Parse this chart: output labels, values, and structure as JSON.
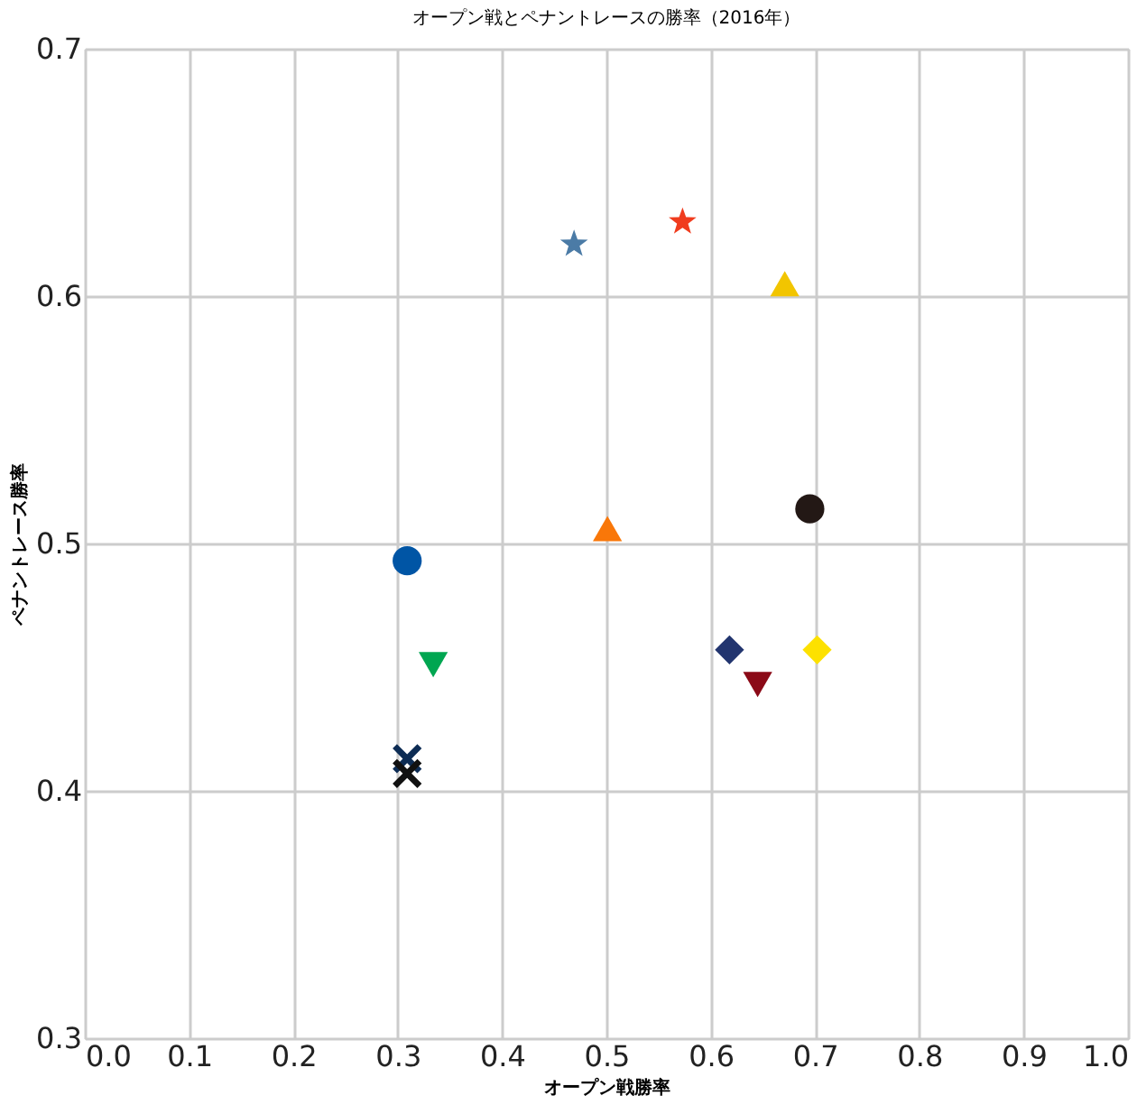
{
  "chart_data": {
    "type": "scatter",
    "title": "オープン戦とペナントレースの勝率（2016年）",
    "xlabel": "オープン戦勝率",
    "ylabel": "ペナントレース勝率",
    "xlim": [
      0,
      1
    ],
    "xticks": [
      {
        "value": 0,
        "label": "0.0"
      },
      0.1,
      0.2,
      0.3,
      0.4,
      0.5,
      0.6,
      0.7,
      0.8,
      0.9,
      {
        "value": 1,
        "label": "1.0"
      }
    ],
    "ylim": [
      0.3,
      0.7
    ],
    "yticks": [
      0.3,
      0.4,
      0.5,
      0.6,
      0.7
    ],
    "grid": true,
    "legend": false,
    "series": [
      {
        "color": "#4b7ba6",
        "marker": "star",
        "x": [
          0.469
        ],
        "values": [
          0.621
        ]
      },
      {
        "color": "#f03c1e",
        "marker": "star",
        "x": [
          0.573
        ],
        "values": [
          0.63
        ]
      },
      {
        "color": "#f2c500",
        "marker": "triangle",
        "x": [
          0.671
        ],
        "values": [
          0.605
        ]
      },
      {
        "color": "#231815",
        "marker": "circle",
        "x": [
          0.695
        ],
        "values": [
          0.514
        ]
      },
      {
        "color": "#f97709",
        "marker": "triangle",
        "x": [
          0.501
        ],
        "values": [
          0.506
        ]
      },
      {
        "color": "#0055a5",
        "marker": "circle",
        "x": [
          0.309
        ],
        "values": [
          0.493
        ]
      },
      {
        "color": "#00a651",
        "marker": "triangle-down",
        "x": [
          0.334
        ],
        "values": [
          0.451
        ]
      },
      {
        "color": "#22356f",
        "marker": "diamond",
        "x": [
          0.618
        ],
        "values": [
          0.457
        ]
      },
      {
        "color": "#fde100",
        "marker": "diamond",
        "x": [
          0.702
        ],
        "values": [
          0.457
        ]
      },
      {
        "color": "#8b0a17",
        "marker": "triangle-down",
        "x": [
          0.645
        ],
        "values": [
          0.443
        ]
      },
      {
        "color": "#0d2c54",
        "marker": "cross",
        "x": [
          0.309
        ],
        "values": [
          0.413
        ]
      },
      {
        "color": "#111111",
        "marker": "cross",
        "x": [
          0.309
        ],
        "values": [
          0.407
        ]
      }
    ]
  }
}
